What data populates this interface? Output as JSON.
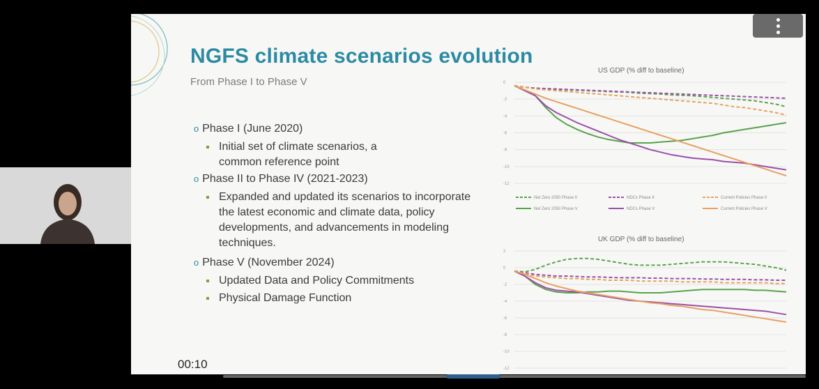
{
  "slide": {
    "title": "NGFS climate scenarios evolution",
    "subtitle": "From Phase I to Phase V",
    "bullets": [
      {
        "label": "Phase I (June 2020)",
        "subs": [
          "Initial set of climate scenarios, a common reference point"
        ]
      },
      {
        "label": "Phase II to Phase IV (2021-2023)",
        "subs": [
          "Expanded and updated its scenarios to incorporate the latest economic and climate data, policy developments, and advancements in modeling techniques."
        ]
      },
      {
        "label": "Phase V (November 2024)",
        "subs": [
          "Updated Data and Policy Commitments",
          "Physical Damage Function"
        ]
      }
    ]
  },
  "player": {
    "elapsed": "00:10"
  },
  "icons": {
    "menu": "more-vertical-icon",
    "bullet": "circle-bullet-icon",
    "sub_bullet": "square-bullet-icon"
  },
  "chart_data": [
    {
      "type": "line",
      "title": "US GDP (% diff to baseline)",
      "ylim": [
        -12,
        0
      ],
      "yticks": [
        "0",
        "-2",
        "-4",
        "-6",
        "-8",
        "-10",
        "-12"
      ],
      "x": [
        0,
        1,
        2,
        3,
        4,
        5,
        6,
        7,
        8,
        9,
        10,
        11,
        12,
        13,
        14,
        15,
        16,
        17,
        18,
        19,
        20,
        21,
        22,
        23,
        24,
        25,
        26
      ],
      "series": [
        {
          "name": "Net Zero 2050 Phase II",
          "color": "#5aa14a",
          "dash": true,
          "values": [
            -0.4,
            -0.6,
            -0.7,
            -0.8,
            -0.85,
            -0.9,
            -0.95,
            -1,
            -1.05,
            -1.1,
            -1.15,
            -1.2,
            -1.3,
            -1.35,
            -1.4,
            -1.5,
            -1.55,
            -1.6,
            -1.7,
            -1.8,
            -1.9,
            -2.0,
            -2.1,
            -2.2,
            -2.4,
            -2.6,
            -2.9
          ]
        },
        {
          "name": "NDCs Phase II",
          "color": "#9b4fa6",
          "dash": true,
          "values": [
            -0.4,
            -0.6,
            -0.7,
            -0.75,
            -0.8,
            -0.85,
            -0.9,
            -0.95,
            -1,
            -1.05,
            -1.1,
            -1.15,
            -1.2,
            -1.25,
            -1.3,
            -1.35,
            -1.4,
            -1.45,
            -1.5,
            -1.55,
            -1.6,
            -1.65,
            -1.7,
            -1.75,
            -1.8,
            -1.85,
            -1.9
          ]
        },
        {
          "name": "Current Policies Phase II",
          "color": "#e8a060",
          "dash": true,
          "values": [
            -0.4,
            -0.6,
            -0.8,
            -0.9,
            -1,
            -1.1,
            -1.2,
            -1.3,
            -1.4,
            -1.5,
            -1.6,
            -1.7,
            -1.8,
            -1.9,
            -2.0,
            -2.1,
            -2.2,
            -2.3,
            -2.4,
            -2.5,
            -2.7,
            -2.9,
            -3.0,
            -3.2,
            -3.4,
            -3.6,
            -3.9
          ]
        },
        {
          "name": "Net Zero 2050 Phase V",
          "color": "#5aa14a",
          "dash": false,
          "values": [
            -0.4,
            -1.0,
            -1.6,
            -3.0,
            -4.2,
            -5.0,
            -5.6,
            -6.1,
            -6.5,
            -6.8,
            -7.0,
            -7.2,
            -7.2,
            -7.2,
            -7.1,
            -7.0,
            -6.9,
            -6.7,
            -6.5,
            -6.3,
            -6.0,
            -5.8,
            -5.6,
            -5.4,
            -5.2,
            -5.0,
            -4.8
          ]
        },
        {
          "name": "NDCs Phase V",
          "color": "#9b4fa6",
          "dash": false,
          "values": [
            -0.4,
            -1.0,
            -1.6,
            -2.8,
            -3.6,
            -4.2,
            -4.8,
            -5.3,
            -5.8,
            -6.3,
            -6.8,
            -7.2,
            -7.6,
            -8.0,
            -8.3,
            -8.6,
            -8.8,
            -9.0,
            -9.1,
            -9.2,
            -9.4,
            -9.5,
            -9.6,
            -9.8,
            -10.0,
            -10.2,
            -10.4
          ]
        },
        {
          "name": "Current Policies Phase V",
          "color": "#e8a060",
          "dash": false,
          "values": [
            -0.4,
            -0.9,
            -1.4,
            -1.9,
            -2.3,
            -2.7,
            -3.1,
            -3.5,
            -3.9,
            -4.3,
            -4.7,
            -5.1,
            -5.5,
            -5.9,
            -6.3,
            -6.7,
            -7.1,
            -7.5,
            -7.9,
            -8.3,
            -8.7,
            -9.1,
            -9.5,
            -9.9,
            -10.3,
            -10.7,
            -11.1
          ]
        }
      ]
    },
    {
      "type": "line",
      "title": "UK GDP (% diff to baseline)",
      "ylim": [
        -12,
        2
      ],
      "yticks": [
        "2",
        "0",
        "-2",
        "-4",
        "-6",
        "-8",
        "-10",
        "-12"
      ],
      "x": [
        0,
        1,
        2,
        3,
        4,
        5,
        6,
        7,
        8,
        9,
        10,
        11,
        12,
        13,
        14,
        15,
        16,
        17,
        18,
        19,
        20,
        21,
        22,
        23,
        24,
        25,
        26
      ],
      "series": [
        {
          "name": "Net Zero 2050 Phase II",
          "color": "#5aa14a",
          "dash": true,
          "values": [
            -0.4,
            -0.5,
            -0.2,
            0.3,
            0.7,
            1.0,
            1.1,
            1.1,
            1.0,
            0.8,
            0.6,
            0.4,
            0.3,
            0.3,
            0.3,
            0.4,
            0.5,
            0.6,
            0.7,
            0.7,
            0.7,
            0.6,
            0.5,
            0.4,
            0.2,
            0.0,
            -0.3
          ]
        },
        {
          "name": "NDCs Phase II",
          "color": "#9b4fa6",
          "dash": true,
          "values": [
            -0.4,
            -0.6,
            -0.8,
            -0.9,
            -1,
            -1,
            -1.05,
            -1.1,
            -1.1,
            -1.15,
            -1.2,
            -1.2,
            -1.2,
            -1.25,
            -1.25,
            -1.3,
            -1.3,
            -1.3,
            -1.35,
            -1.35,
            -1.4,
            -1.4,
            -1.4,
            -1.45,
            -1.45,
            -1.5,
            -1.5
          ]
        },
        {
          "name": "Current Policies Phase II",
          "color": "#e8a060",
          "dash": true,
          "values": [
            -0.4,
            -0.7,
            -1.0,
            -1.1,
            -1.2,
            -1.3,
            -1.3,
            -1.4,
            -1.4,
            -1.5,
            -1.5,
            -1.5,
            -1.6,
            -1.6,
            -1.6,
            -1.6,
            -1.7,
            -1.7,
            -1.7,
            -1.7,
            -1.8,
            -1.8,
            -1.8,
            -1.8,
            -1.8,
            -1.9,
            -1.9
          ]
        },
        {
          "name": "Net Zero 2050 Phase V",
          "color": "#5aa14a",
          "dash": false,
          "values": [
            -0.4,
            -1.0,
            -2.0,
            -2.6,
            -2.9,
            -3.0,
            -3.0,
            -2.9,
            -2.9,
            -2.8,
            -2.8,
            -2.9,
            -3.0,
            -3.0,
            -3.0,
            -2.9,
            -2.8,
            -2.7,
            -2.6,
            -2.6,
            -2.6,
            -2.6,
            -2.6,
            -2.7,
            -2.7,
            -2.8,
            -2.9
          ]
        },
        {
          "name": "NDCs Phase V",
          "color": "#9b4fa6",
          "dash": false,
          "values": [
            -0.4,
            -1.0,
            -1.8,
            -2.4,
            -2.7,
            -2.8,
            -2.9,
            -3.1,
            -3.3,
            -3.5,
            -3.7,
            -3.9,
            -4.0,
            -4.1,
            -4.2,
            -4.3,
            -4.4,
            -4.5,
            -4.6,
            -4.7,
            -4.8,
            -4.9,
            -5.0,
            -5.1,
            -5.2,
            -5.4,
            -5.6
          ]
        },
        {
          "name": "Current Policies Phase V",
          "color": "#e8a060",
          "dash": false,
          "values": [
            -0.4,
            -0.8,
            -1.3,
            -1.8,
            -2.2,
            -2.5,
            -2.8,
            -3.0,
            -3.2,
            -3.4,
            -3.6,
            -3.8,
            -4.0,
            -4.2,
            -4.3,
            -4.5,
            -4.6,
            -4.8,
            -5.0,
            -5.1,
            -5.3,
            -5.5,
            -5.7,
            -5.9,
            -6.1,
            -6.3,
            -6.5
          ]
        }
      ]
    }
  ]
}
